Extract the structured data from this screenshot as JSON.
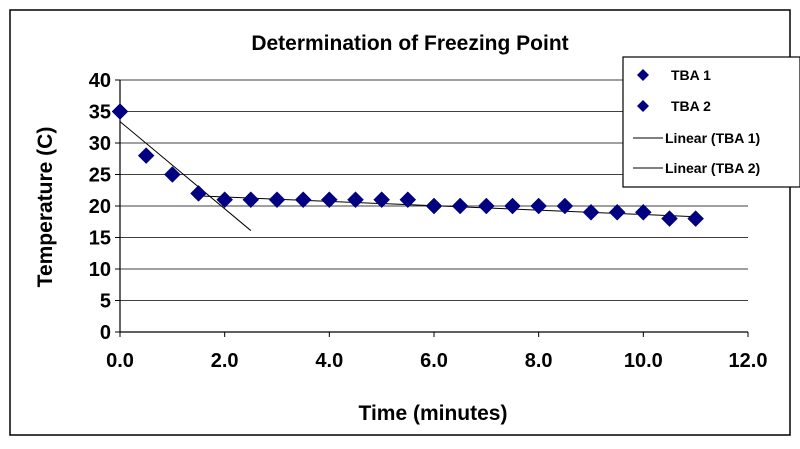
{
  "chart_data": {
    "type": "scatter",
    "title": "Determination of Freezing Point",
    "xlabel": "Time (minutes)",
    "ylabel": "Temperature (C)",
    "xlim": [
      0,
      12
    ],
    "ylim": [
      0,
      40
    ],
    "x_ticks": [
      0,
      2,
      4,
      6,
      8,
      10,
      12
    ],
    "x_tick_labels": [
      "0.0",
      "2.0",
      "4.0",
      "6.0",
      "8.0",
      "10.0",
      "12.0"
    ],
    "y_ticks": [
      0,
      5,
      10,
      15,
      20,
      25,
      30,
      35,
      40
    ],
    "y_tick_labels": [
      "0",
      "5",
      "10",
      "15",
      "20",
      "25",
      "30",
      "35",
      "40"
    ],
    "grid": "horizontal",
    "legend_position": "top-right",
    "series": [
      {
        "name": "TBA 1",
        "marker": "diamond",
        "color": "#000080",
        "x": [
          0,
          0.5,
          1,
          1.5
        ],
        "y": [
          35,
          28,
          25,
          22
        ]
      },
      {
        "name": "TBA 2",
        "marker": "diamond",
        "color": "#000080",
        "x": [
          2,
          2.5,
          3,
          3.5,
          4,
          4.5,
          5,
          5.5,
          6,
          6.5,
          7,
          7.5,
          8,
          8.5,
          9,
          9.5,
          10,
          10.5,
          11
        ],
        "y": [
          21,
          21,
          21,
          21,
          21,
          21,
          21,
          21,
          20,
          20,
          20,
          20,
          20,
          20,
          19,
          19,
          19,
          18,
          18
        ]
      }
    ],
    "trendlines": [
      {
        "name": "Linear (TBA 1)",
        "x": [
          0,
          2.5
        ],
        "y": [
          33.4,
          16.1
        ],
        "color": "#000000"
      },
      {
        "name": "Linear (TBA 2)",
        "x": [
          1.5,
          11
        ],
        "y": [
          21.6,
          18.3
        ],
        "color": "#000000"
      }
    ],
    "legend": [
      {
        "label": "TBA 1",
        "kind": "marker"
      },
      {
        "label": "TBA 2",
        "kind": "marker"
      },
      {
        "label": "Linear (TBA 1)",
        "kind": "line"
      },
      {
        "label": "Linear (TBA 2)",
        "kind": "line"
      }
    ]
  }
}
